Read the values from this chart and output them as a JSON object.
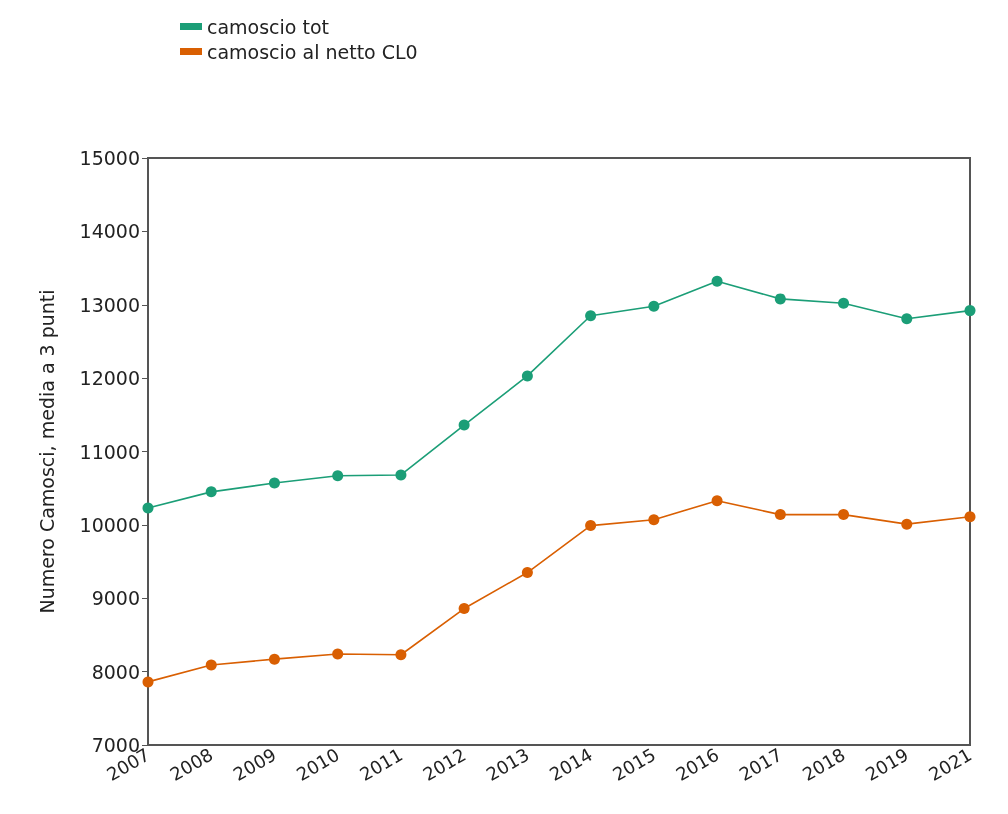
{
  "chart_data": {
    "type": "line",
    "ylabel": "Numero Camosci, media a 3 punti",
    "categories": [
      "2007",
      "2008",
      "2009",
      "2010",
      "2011",
      "2012",
      "2013",
      "2014",
      "2015",
      "2016",
      "2017",
      "2018",
      "2019",
      "2021"
    ],
    "series": [
      {
        "name": "camoscio tot",
        "color": "#1b9e77",
        "values": [
          10230,
          10450,
          10570,
          10670,
          10680,
          11360,
          12030,
          12850,
          12980,
          13320,
          13080,
          13020,
          12810,
          12920
        ]
      },
      {
        "name": "camoscio al netto CL0",
        "color": "#d95f02",
        "values": [
          7860,
          8090,
          8170,
          8240,
          8230,
          8860,
          9350,
          9990,
          10070,
          10330,
          10140,
          10140,
          10010,
          10110
        ]
      }
    ],
    "ylim": [
      7000,
      15000
    ],
    "yticks": [
      7000,
      8000,
      9000,
      10000,
      11000,
      12000,
      13000,
      14000,
      15000
    ],
    "grid": false,
    "legend": "top left",
    "marker": "circle",
    "line_style": "solid"
  }
}
